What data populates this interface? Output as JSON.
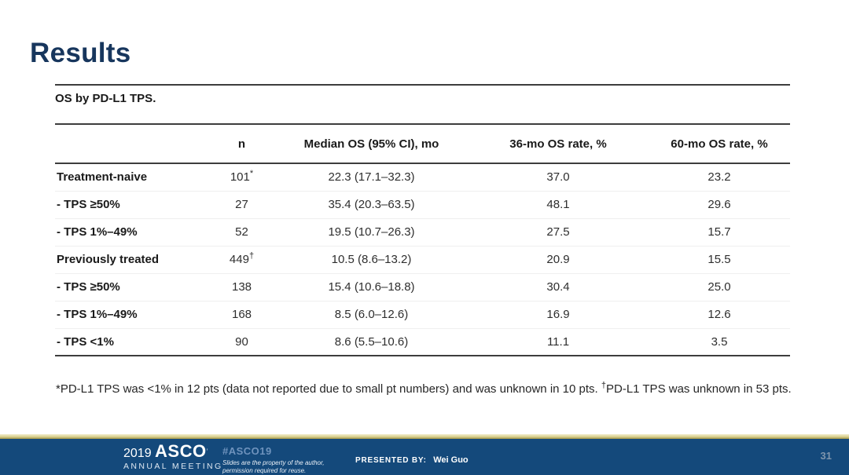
{
  "slide": {
    "title": "Results",
    "page_number": "31"
  },
  "table": {
    "caption": "OS by PD-L1 TPS.",
    "columns": {
      "c0": "",
      "c1": "n",
      "c2": "Median OS (95% CI), mo",
      "c3": "36-mo OS rate, %",
      "c4": "60-mo OS rate, %"
    },
    "rows": [
      {
        "label": "Treatment-naive",
        "n": "101",
        "n_marker": "*",
        "median_os": "22.3 (17.1–32.3)",
        "os36": "37.0",
        "os60": "23.2"
      },
      {
        "label": "- TPS ≥50%",
        "n": "27",
        "n_marker": "",
        "median_os": "35.4 (20.3–63.5)",
        "os36": "48.1",
        "os60": "29.6"
      },
      {
        "label": "- TPS 1%–49%",
        "n": "52",
        "n_marker": "",
        "median_os": "19.5 (10.7–26.3)",
        "os36": "27.5",
        "os60": "15.7"
      },
      {
        "label": "Previously treated",
        "n": "449",
        "n_marker": "†",
        "median_os": "10.5 (8.6–13.2)",
        "os36": "20.9",
        "os60": "15.5"
      },
      {
        "label": "- TPS ≥50%",
        "n": "138",
        "n_marker": "",
        "median_os": "15.4 (10.6–18.8)",
        "os36": "30.4",
        "os60": "25.0"
      },
      {
        "label": "- TPS 1%–49%",
        "n": "168",
        "n_marker": "",
        "median_os": "8.5 (6.0–12.6)",
        "os36": "16.9",
        "os60": "12.6"
      },
      {
        "label": "- TPS <1%",
        "n": "90",
        "n_marker": "",
        "median_os": "8.6 (5.5–10.6)",
        "os36": "11.1",
        "os60": "3.5"
      }
    ],
    "footnote": {
      "part1": "*PD-L1 TPS was <1% in 12 pts (data not reported due to small pt numbers) and was unknown in 10 pts. ",
      "dagger": "†",
      "part2": "PD-L1 TPS was unknown in 53 pts."
    }
  },
  "footer": {
    "logo": {
      "year": "2019",
      "name": "ASCO",
      "mark": "’",
      "subtitle": "ANNUAL MEETING"
    },
    "hashtag": "#ASCO19",
    "disclaimer_line1": "Slides are the property of the author,",
    "disclaimer_line2": "permission required for reuse.",
    "presented_by_label": "PRESENTED BY:",
    "presenter_name": "Wei Guo"
  },
  "colors": {
    "title": "#17365d",
    "footer_bar": "#14497b",
    "gold_line": "#d9d08f",
    "hashtag": "#6f93bd",
    "page_number": "#7e95ad",
    "table_rule": "#3d3d3d"
  }
}
